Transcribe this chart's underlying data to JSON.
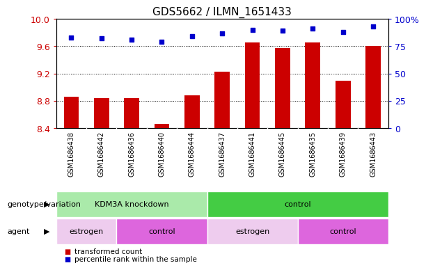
{
  "title": "GDS5662 / ILMN_1651433",
  "samples": [
    "GSM1686438",
    "GSM1686442",
    "GSM1686436",
    "GSM1686440",
    "GSM1686444",
    "GSM1686437",
    "GSM1686441",
    "GSM1686445",
    "GSM1686435",
    "GSM1686439",
    "GSM1686443"
  ],
  "bar_values": [
    8.86,
    8.84,
    8.84,
    8.46,
    8.88,
    9.23,
    9.66,
    9.57,
    9.66,
    9.1,
    9.6
  ],
  "dot_values": [
    83,
    82,
    81,
    79,
    84,
    87,
    90,
    89,
    91,
    88,
    93
  ],
  "ylim_left": [
    8.4,
    10.0
  ],
  "ylim_right": [
    0,
    100
  ],
  "yticks_left": [
    8.4,
    8.8,
    9.2,
    9.6,
    10.0
  ],
  "yticks_right": [
    0,
    25,
    50,
    75,
    100
  ],
  "ytick_labels_right": [
    "0",
    "25",
    "50",
    "75",
    "100%"
  ],
  "bar_color": "#cc0000",
  "dot_color": "#0000cc",
  "bg_color": "#ffffff",
  "sample_bg_color": "#cccccc",
  "sample_sep_color": "#ffffff",
  "genotype_groups": [
    {
      "label": "KDM3A knockdown",
      "start": 0,
      "end": 5,
      "color": "#aaeaaa"
    },
    {
      "label": "control",
      "start": 5,
      "end": 11,
      "color": "#44cc44"
    }
  ],
  "agent_groups": [
    {
      "label": "estrogen",
      "start": 0,
      "end": 2,
      "color": "#eeccee"
    },
    {
      "label": "control",
      "start": 2,
      "end": 5,
      "color": "#dd66dd"
    },
    {
      "label": "estrogen",
      "start": 5,
      "end": 8,
      "color": "#eeccee"
    },
    {
      "label": "control",
      "start": 8,
      "end": 11,
      "color": "#dd66dd"
    }
  ],
  "legend_items": [
    {
      "label": "transformed count",
      "color": "#cc0000"
    },
    {
      "label": "percentile rank within the sample",
      "color": "#0000cc"
    }
  ],
  "left_label_geno": "genotype/variation",
  "left_label_agent": "agent",
  "xlabel_color": "#cc0000",
  "right_axis_color": "#0000cc",
  "title_fontsize": 11,
  "tick_fontsize": 9,
  "sample_fontsize": 7,
  "annot_fontsize": 8,
  "bar_width": 0.5
}
